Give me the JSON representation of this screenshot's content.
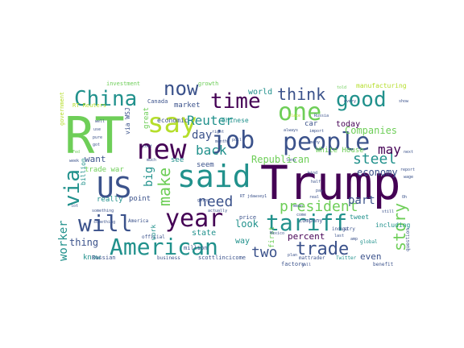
{
  "palette": {
    "dark_purple": "#440154",
    "indigo": "#3b528b",
    "blue": "#31688e",
    "teal": "#21918c",
    "green": "#35b779",
    "light_green": "#6ece58",
    "yellow_green": "#b5de2b",
    "yellow": "#fde725"
  },
  "words": [
    {
      "text": "Trump",
      "color": "dark_purple"
    },
    {
      "text": "RT",
      "color": "light_green"
    },
    {
      "text": "said",
      "color": "teal"
    },
    {
      "text": "US",
      "color": "indigo"
    },
    {
      "text": "new",
      "color": "dark_purple"
    },
    {
      "text": "year",
      "color": "dark_purple"
    },
    {
      "text": "will",
      "color": "indigo"
    },
    {
      "text": "American",
      "color": "teal"
    },
    {
      "text": "tariff",
      "color": "teal"
    },
    {
      "text": "job",
      "color": "indigo"
    },
    {
      "text": "people",
      "color": "indigo"
    },
    {
      "text": "China",
      "color": "teal"
    },
    {
      "text": "say",
      "color": "yellow_green"
    },
    {
      "text": "one",
      "color": "light_green"
    },
    {
      "text": "good",
      "color": "teal"
    },
    {
      "text": "time",
      "color": "dark_purple"
    },
    {
      "text": "now",
      "color": "indigo"
    },
    {
      "text": "via",
      "color": "teal"
    },
    {
      "text": "think",
      "color": "indigo"
    },
    {
      "text": "make",
      "color": "light_green"
    },
    {
      "text": "trade",
      "color": "indigo"
    },
    {
      "text": "story",
      "color": "light_green"
    },
    {
      "text": "two",
      "color": "indigo"
    },
    {
      "text": "steel",
      "color": "teal"
    },
    {
      "text": "president",
      "color": "light_green"
    },
    {
      "text": "Reuter",
      "color": "teal"
    },
    {
      "text": "need",
      "color": "indigo"
    },
    {
      "text": "back",
      "color": "teal"
    },
    {
      "text": "day",
      "color": "indigo"
    },
    {
      "text": "may",
      "color": "dark_purple"
    },
    {
      "text": "big",
      "color": "teal"
    },
    {
      "text": "worker",
      "color": "teal"
    },
    {
      "text": "part",
      "color": "indigo"
    },
    {
      "text": "Companies",
      "color": "light_green"
    },
    {
      "text": "Republican",
      "color": "light_green"
    },
    {
      "text": "economy",
      "color": "indigo"
    },
    {
      "text": "look",
      "color": "teal"
    },
    {
      "text": "thing",
      "color": "indigo"
    },
    {
      "text": "want",
      "color": "indigo"
    },
    {
      "text": "percent",
      "color": "dark_purple"
    },
    {
      "text": "even",
      "color": "indigo"
    },
    {
      "text": "state",
      "color": "teal"
    },
    {
      "text": "today",
      "color": "dark_purple"
    },
    {
      "text": "really",
      "color": "teal"
    },
    {
      "text": "point",
      "color": "indigo"
    },
    {
      "text": "world",
      "color": "teal"
    },
    {
      "text": "market",
      "color": "indigo"
    },
    {
      "text": "seem",
      "color": "indigo"
    },
    {
      "text": "see",
      "color": "teal"
    },
    {
      "text": "way",
      "color": "teal"
    },
    {
      "text": "know",
      "color": "teal"
    },
    {
      "text": "trade war",
      "color": "light_green"
    },
    {
      "text": "via WSJ",
      "color": "indigo"
    },
    {
      "text": "great",
      "color": "light_green"
    },
    {
      "text": "billion",
      "color": "teal"
    },
    {
      "text": "work",
      "color": "teal"
    },
    {
      "text": "first",
      "color": "light_green"
    },
    {
      "text": "factory",
      "color": "indigo"
    },
    {
      "text": "White House",
      "color": "light_green"
    },
    {
      "text": "including",
      "color": "teal"
    },
    {
      "text": "Chinese",
      "color": "teal"
    },
    {
      "text": "car",
      "color": "indigo"
    },
    {
      "text": "company",
      "color": "indigo"
    },
    {
      "text": "million",
      "color": "indigo"
    },
    {
      "text": "economic",
      "color": "indigo"
    },
    {
      "text": "Canada",
      "color": "indigo"
    },
    {
      "text": "tweet",
      "color": "teal"
    },
    {
      "text": "price",
      "color": "indigo"
    },
    {
      "text": "investment",
      "color": "light_green"
    },
    {
      "text": "growth",
      "color": "light_green"
    },
    {
      "text": "manufacturing",
      "color": "yellow_green"
    },
    {
      "text": "RT Reuters",
      "color": "yellow_green"
    },
    {
      "text": "government",
      "color": "yellow_green"
    },
    {
      "text": "Russian",
      "color": "indigo"
    },
    {
      "text": "business",
      "color": "indigo"
    },
    {
      "text": "scottlincicome",
      "color": "indigo"
    },
    {
      "text": "official",
      "color": "indigo"
    },
    {
      "text": "America",
      "color": "indigo"
    },
    {
      "text": "question",
      "color": "indigo"
    },
    {
      "text": "benefit",
      "color": "indigo"
    },
    {
      "text": "global",
      "color": "teal"
    },
    {
      "text": "industry",
      "color": "indigo"
    },
    {
      "text": "mattrader",
      "color": "indigo"
    },
    {
      "text": "Twitter",
      "color": "teal"
    },
    {
      "text": "Mexico",
      "color": "indigo"
    },
    {
      "text": "place",
      "color": "yellow_green"
    },
    {
      "text": "Russia",
      "color": "indigo"
    },
    {
      "text": "import",
      "color": "indigo"
    },
    {
      "text": "many",
      "color": "indigo"
    },
    {
      "text": "going",
      "color": "indigo"
    },
    {
      "text": "right",
      "color": "indigo"
    },
    {
      "text": "month",
      "color": "indigo"
    },
    {
      "text": "poll",
      "color": "indigo"
    },
    {
      "text": "cost",
      "color": "indigo"
    },
    {
      "text": "much",
      "color": "indigo"
    },
    {
      "text": "well",
      "color": "indigo"
    },
    {
      "text": "use",
      "color": "indigo"
    },
    {
      "text": "pure",
      "color": "indigo"
    },
    {
      "text": "got",
      "color": "indigo"
    },
    {
      "text": "Fed",
      "color": "light_green"
    },
    {
      "text": "week",
      "color": "indigo"
    },
    {
      "text": "lot",
      "color": "indigo"
    },
    {
      "text": "show",
      "color": "indigo"
    },
    {
      "text": "next",
      "color": "indigo"
    },
    {
      "text": "report",
      "color": "indigo"
    },
    {
      "text": "wage",
      "color": "indigo"
    },
    {
      "text": "kind",
      "color": "indigo"
    },
    {
      "text": "half",
      "color": "indigo"
    },
    {
      "text": "pay",
      "color": "indigo"
    },
    {
      "text": "real",
      "color": "indigo"
    },
    {
      "text": "plan",
      "color": "indigo"
    },
    {
      "text": "call",
      "color": "indigo"
    },
    {
      "text": "last",
      "color": "indigo"
    },
    {
      "text": "go",
      "color": "indigo"
    },
    {
      "text": "amp",
      "color": "indigo"
    },
    {
      "text": "still",
      "color": "indigo"
    },
    {
      "text": "told",
      "color": "light_green"
    },
    {
      "text": "something",
      "color": "indigo"
    },
    {
      "text": "actually",
      "color": "indigo"
    },
    {
      "text": "RT jdawsey1",
      "color": "indigo"
    },
    {
      "text": "something",
      "color": "indigo"
    },
    {
      "text": "mean",
      "color": "indigo"
    },
    {
      "text": "come",
      "color": "indigo"
    },
    {
      "text": "long",
      "color": "indigo"
    },
    {
      "text": "every",
      "color": "indigo"
    },
    {
      "text": "always",
      "color": "indigo"
    },
    {
      "text": "Oh",
      "color": "indigo"
    }
  ]
}
